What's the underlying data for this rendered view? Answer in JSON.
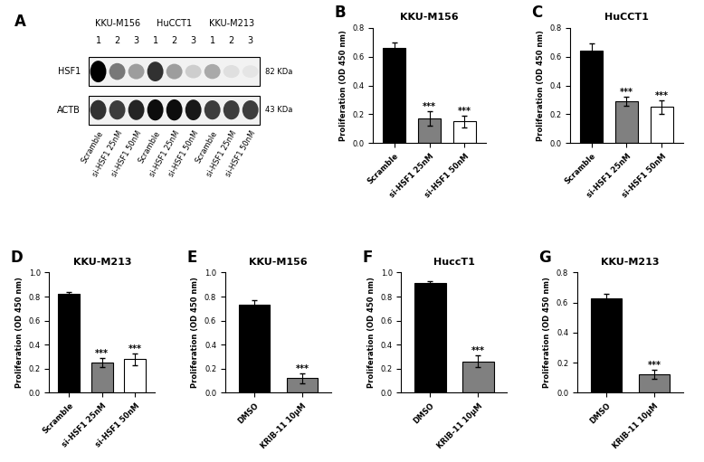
{
  "chart_data": [
    {
      "type": "blot",
      "panel": "A",
      "groups": [
        "KKU-M156",
        "HuCCT1",
        "KKU-M213"
      ],
      "lane_numbers": [
        "1",
        "2",
        "3"
      ],
      "lanes": [
        "Scramble",
        "si-HSF1 25nM",
        "si-HSF1 50nM",
        "Scramble",
        "si-HSF1 25nM",
        "si-HSF1 50nM",
        "Scramble",
        "si-HSF1 25nM",
        "si-HSF1 50nM"
      ],
      "rows": [
        {
          "name": "HSF1",
          "size": "82 KDa",
          "values": [
            1.0,
            0.5,
            0.35,
            0.8,
            0.35,
            0.15,
            0.3,
            0.08,
            0.05
          ]
        },
        {
          "name": "ACTB",
          "size": "43 KDa",
          "values": [
            0.8,
            0.75,
            0.85,
            0.95,
            0.95,
            0.9,
            0.75,
            0.75,
            0.75
          ]
        }
      ]
    },
    {
      "type": "bar",
      "panel": "B",
      "title": "KKU-M156",
      "y_label": "Proliferation (OD 450 nm)",
      "categories": [
        "Scramble",
        "si-HSF1 25nM",
        "si-HSF1 50nM"
      ],
      "values": [
        0.66,
        0.17,
        0.15
      ],
      "errors": [
        0.04,
        0.05,
        0.04
      ],
      "colors": [
        "#000000",
        "#808080",
        "#ffffff"
      ],
      "annotations": [
        null,
        "***",
        "***"
      ],
      "ylim": [
        0,
        0.8
      ],
      "yticks": [
        {
          "value": 0,
          "label": "0.0"
        },
        0.2,
        0.4,
        0.6,
        0.8
      ]
    },
    {
      "type": "bar",
      "panel": "C",
      "title": "HuCCT1",
      "y_label": "Proliferation (OD 450 nm)",
      "categories": [
        "Scramble",
        "si-HSF1 25nM",
        "si-HSF1 50nM"
      ],
      "values": [
        0.64,
        0.29,
        0.25
      ],
      "errors": [
        0.05,
        0.03,
        0.05
      ],
      "colors": [
        "#000000",
        "#808080",
        "#ffffff"
      ],
      "annotations": [
        null,
        "***",
        "***"
      ],
      "ylim": [
        0,
        0.8
      ],
      "yticks": [
        {
          "value": 0,
          "label": "0.0"
        },
        0.2,
        0.4,
        0.6,
        0.8
      ]
    },
    {
      "type": "bar",
      "panel": "D",
      "title": "KKU-M213",
      "y_label": "Proliferation (OD 450 nm)",
      "categories": [
        "Scramble",
        "si-HSF1 25nM",
        "si-HSF1 50nM"
      ],
      "values": [
        0.82,
        0.25,
        0.28
      ],
      "errors": [
        0.02,
        0.04,
        0.05
      ],
      "colors": [
        "#000000",
        "#808080",
        "#ffffff"
      ],
      "annotations": [
        null,
        "***",
        "***"
      ],
      "ylim": [
        0,
        1.0
      ],
      "yticks": [
        {
          "value": 0,
          "label": "0.0"
        },
        0.2,
        0.4,
        0.6,
        0.8,
        1.0
      ]
    },
    {
      "type": "bar",
      "panel": "E",
      "title": "KKU-M156",
      "y_label": "Proliferation (OD 450 nm)",
      "categories": [
        "DMSO",
        "KRIB-11 10μM"
      ],
      "values": [
        0.73,
        0.12
      ],
      "errors": [
        0.04,
        0.04
      ],
      "colors": [
        "#000000",
        "#808080"
      ],
      "annotations": [
        null,
        "***"
      ],
      "ylim": [
        0,
        1.0
      ],
      "yticks": [
        {
          "value": 0,
          "label": "0.0"
        },
        0.2,
        0.4,
        0.6,
        0.8,
        1.0
      ]
    },
    {
      "type": "bar",
      "panel": "F",
      "title": "HuccT1",
      "y_label": "Proliferation (OD 450 nm)",
      "categories": [
        "DMSO",
        "KRIB-11 10μM"
      ],
      "values": [
        0.91,
        0.26
      ],
      "errors": [
        0.02,
        0.05
      ],
      "colors": [
        "#000000",
        "#808080"
      ],
      "annotations": [
        null,
        "***"
      ],
      "ylim": [
        0,
        1.0
      ],
      "yticks": [
        {
          "value": 0,
          "label": "0.0"
        },
        0.2,
        0.4,
        0.6,
        0.8,
        1.0
      ]
    },
    {
      "type": "bar",
      "panel": "G",
      "title": "KKU-M213",
      "y_label": "Proliferation (OD 450 nm)",
      "categories": [
        "DMSO",
        "KRIB-11 10μM"
      ],
      "values": [
        0.63,
        0.12
      ],
      "errors": [
        0.03,
        0.03
      ],
      "colors": [
        "#000000",
        "#808080"
      ],
      "annotations": [
        null,
        "***"
      ],
      "ylim": [
        0,
        0.8
      ],
      "yticks": [
        {
          "value": 0,
          "label": "0.0"
        },
        0.2,
        0.4,
        0.6,
        0.8
      ]
    }
  ]
}
